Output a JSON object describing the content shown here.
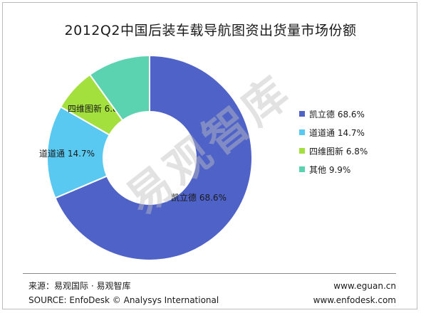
{
  "title": "2012Q2中国后装车载导航图资出货量市场份额",
  "chart_data": {
    "type": "pie",
    "variant": "donut",
    "slices": [
      {
        "label": "凯立德",
        "value": 68.6,
        "color": "#4f62c8",
        "data_label": "凯立德 68.6%"
      },
      {
        "label": "道道通",
        "value": 14.7,
        "color": "#59c9f2",
        "data_label": "道道通 14.7%"
      },
      {
        "label": "四维图新",
        "value": 6.8,
        "color": "#a3e03e",
        "data_label": "四维图新 6.8%"
      },
      {
        "label": "其他",
        "value": 9.9,
        "color": "#5cd3b0",
        "data_label": ""
      }
    ],
    "legend": {
      "placement": "right",
      "entries": [
        "凯立德 68.6%",
        "道道通 14.7%",
        "四维图新 6.8%",
        "其他 9.9%"
      ]
    }
  },
  "watermark": "易观智库",
  "footer": {
    "source_cn": "来源：易观国际 · 易观智库",
    "source_en": "SOURCE: EnfoDesk © Analysys International",
    "url1": "www.eguan.cn",
    "url2": "www.enfodesk.com"
  }
}
